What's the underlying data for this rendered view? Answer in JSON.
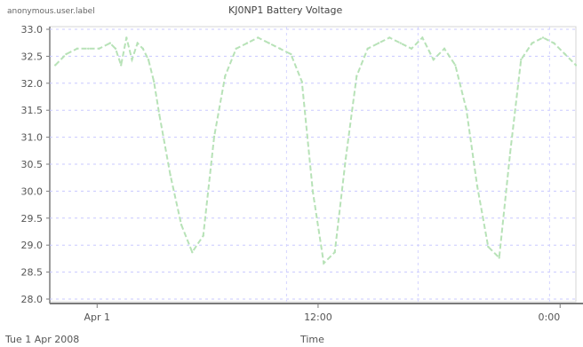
{
  "header": {
    "left_text": "anonymous.user.label",
    "title": "KJ0NP1 Battery Voltage"
  },
  "footer": {
    "date_text": "Tue 1 Apr 2008",
    "x_axis_label": "Time"
  },
  "chart_data": {
    "type": "line",
    "title": "KJ0NP1 Battery Voltage",
    "xlabel": "Time",
    "ylabel": "",
    "x_ticks": [
      "Apr 1",
      "12:00",
      "0:00"
    ],
    "y_ticks": [
      "33.0",
      "32.5",
      "32.0",
      "31.5",
      "31.0",
      "30.5",
      "30.0",
      "29.5",
      "29.0",
      "28.5",
      "28.0"
    ],
    "ylim": [
      28.0,
      33.0
    ],
    "grid": true,
    "line_color": "#b7e2b7",
    "series": [
      {
        "name": "",
        "x_hours": [
          0.5,
          1.5,
          2.5,
          3.5,
          4.5,
          5.5,
          6.0,
          6.5,
          7.0,
          7.5,
          8.0,
          8.5,
          9.0,
          9.5,
          10.0,
          11.0,
          12.0,
          13.0,
          14.0,
          15.0,
          16.0,
          17.0,
          18.0,
          19.0,
          20.0,
          21.0,
          22.0,
          23.0,
          24.0,
          25.0,
          26.0,
          27.0,
          28.0,
          29.0,
          30.0,
          31.0,
          32.0,
          33.0,
          34.0,
          35.0,
          36.0,
          37.0,
          38.0,
          39.0,
          40.0,
          41.0,
          42.0,
          43.0,
          44.0,
          45.0,
          46.0,
          47.0,
          48.0
        ],
        "y": [
          32.3,
          32.5,
          32.6,
          32.6,
          32.6,
          32.7,
          32.6,
          32.3,
          32.8,
          32.4,
          32.7,
          32.6,
          32.4,
          32.0,
          31.4,
          30.3,
          29.4,
          28.9,
          29.2,
          31.0,
          32.1,
          32.6,
          32.7,
          32.8,
          32.7,
          32.6,
          32.5,
          32.0,
          30.0,
          28.7,
          28.9,
          30.6,
          32.1,
          32.6,
          32.7,
          32.8,
          32.7,
          32.6,
          32.8,
          32.4,
          32.6,
          32.3,
          31.5,
          30.1,
          29.0,
          28.8,
          30.7,
          32.4,
          32.7,
          32.8,
          32.7,
          32.5,
          32.3
        ]
      }
    ],
    "x_range_hours": [
      0,
      48
    ]
  }
}
